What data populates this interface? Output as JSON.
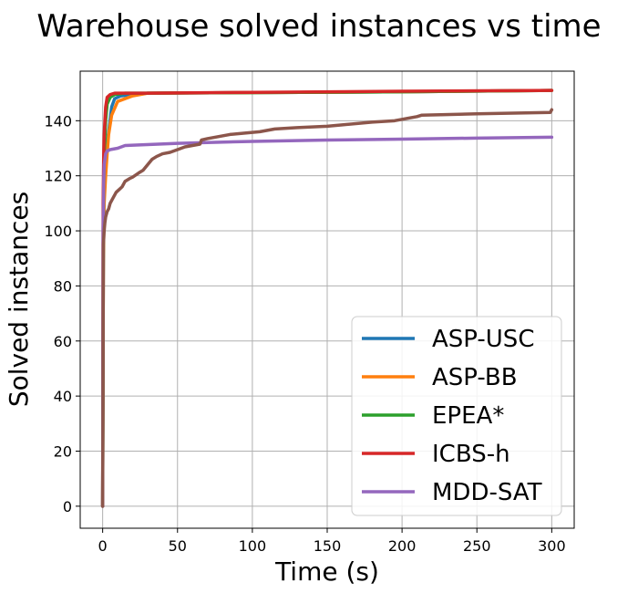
{
  "chart_data": {
    "type": "line",
    "title": "Warehouse solved instances vs time",
    "xlabel": "Time (s)",
    "ylabel": "Solved instances",
    "xlim": [
      -15,
      315
    ],
    "ylim": [
      -8,
      158
    ],
    "xticks": [
      0,
      50,
      100,
      150,
      200,
      250,
      300
    ],
    "yticks": [
      0,
      20,
      40,
      60,
      80,
      100,
      120,
      140
    ],
    "grid": true,
    "legend_position": "lower-right",
    "series": [
      {
        "name": "ASP-USC",
        "color": "#1f77b4",
        "x": [
          0,
          0.5,
          1,
          2,
          3,
          4,
          6,
          8,
          12,
          20,
          30,
          100,
          200,
          300
        ],
        "y": [
          0,
          95,
          118,
          128,
          132,
          136,
          145,
          148,
          149,
          149.5,
          150,
          150.2,
          150.5,
          151
        ]
      },
      {
        "name": "ASP-BB",
        "color": "#ff7f0e",
        "x": [
          0,
          0.5,
          1,
          2,
          3,
          4,
          6,
          10,
          20,
          30,
          100,
          200,
          300
        ],
        "y": [
          0,
          90,
          110,
          120,
          128,
          135,
          142,
          147,
          149,
          150,
          150.2,
          150.5,
          151
        ]
      },
      {
        "name": "EPEA*",
        "color": "#2ca02c",
        "x": [
          0,
          0.5,
          1,
          2,
          3,
          5,
          8,
          15,
          30,
          100,
          200,
          300
        ],
        "y": [
          0,
          110,
          128,
          140,
          146,
          148.5,
          149.5,
          150,
          150,
          150.2,
          150.5,
          151
        ]
      },
      {
        "name": "ICBS-h",
        "color": "#d62728",
        "x": [
          0,
          0.3,
          0.7,
          1,
          2,
          3,
          5,
          8,
          15,
          30,
          100,
          200,
          300
        ],
        "y": [
          0,
          110,
          128,
          135,
          145,
          148.5,
          149.5,
          150,
          150,
          150,
          150.3,
          150.7,
          151
        ]
      },
      {
        "name": "MDD-SAT",
        "color": "#9467bd",
        "x": [
          0,
          0.3,
          0.7,
          1,
          2,
          3,
          5,
          10,
          15,
          50,
          100,
          150,
          200,
          250,
          300
        ],
        "y": [
          0,
          100,
          118,
          124,
          128,
          129,
          129.5,
          130,
          131,
          131.8,
          132.5,
          133,
          133.3,
          133.7,
          134
        ]
      },
      {
        "name": "",
        "color": "#8c564b",
        "x": [
          0,
          0.5,
          1,
          1.5,
          2,
          3,
          4,
          5,
          7,
          9,
          11,
          13,
          15,
          18,
          20,
          24,
          27,
          30,
          33,
          36,
          40,
          45,
          50,
          55,
          60,
          65,
          66,
          70,
          75,
          80,
          85,
          95,
          105,
          110,
          115,
          130,
          150,
          160,
          180,
          195,
          200,
          210,
          213,
          250,
          299,
          300
        ],
        "y": [
          0,
          95,
          100,
          103,
          105,
          107,
          108,
          110,
          112,
          114,
          115,
          116,
          118,
          119,
          119.5,
          121,
          122,
          124,
          126,
          127,
          128,
          128.5,
          129.5,
          130.5,
          131,
          131.5,
          133,
          133.5,
          134,
          134.5,
          135,
          135.5,
          136,
          136.5,
          137,
          137.5,
          138,
          138.5,
          139.5,
          140,
          140.5,
          141.5,
          142,
          142.5,
          143,
          144
        ]
      }
    ]
  }
}
